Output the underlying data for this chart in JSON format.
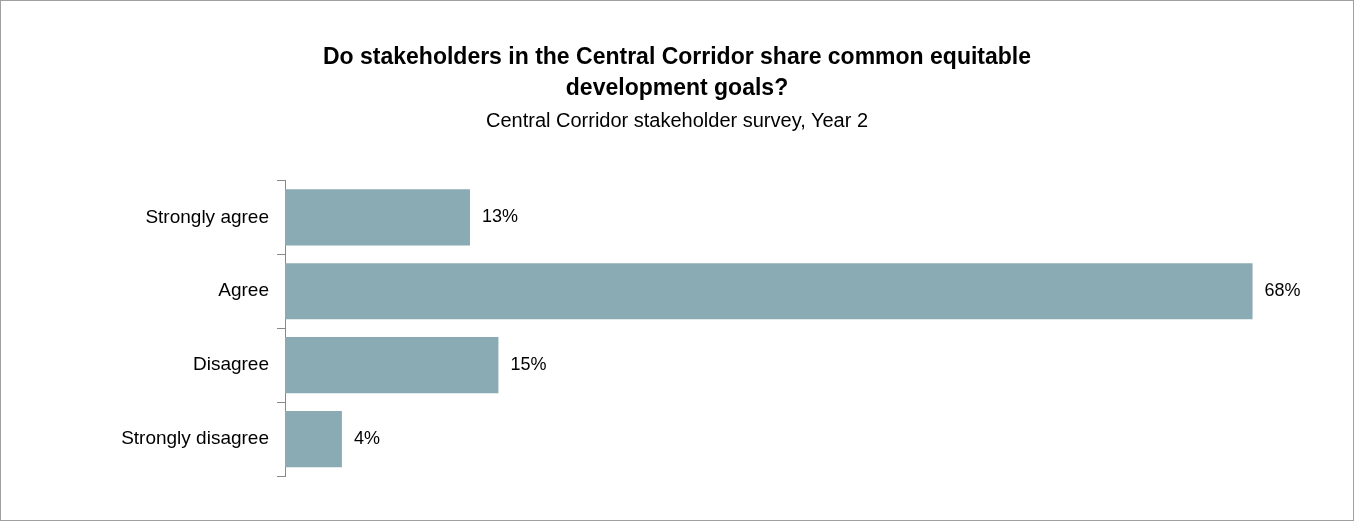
{
  "chart_data": {
    "type": "bar",
    "orientation": "horizontal",
    "title": "Do stakeholders in the Central Corridor share common equitable development goals?",
    "subtitle": "Central Corridor stakeholder survey, Year 2",
    "categories": [
      "Strongly agree",
      "Agree",
      "Disagree",
      "Strongly disagree"
    ],
    "values": [
      13,
      68,
      15,
      4
    ],
    "color": "#8aabb3",
    "value_labels": [
      "13%",
      "68%",
      "15%",
      "4%"
    ],
    "grid": false,
    "legend": false
  }
}
